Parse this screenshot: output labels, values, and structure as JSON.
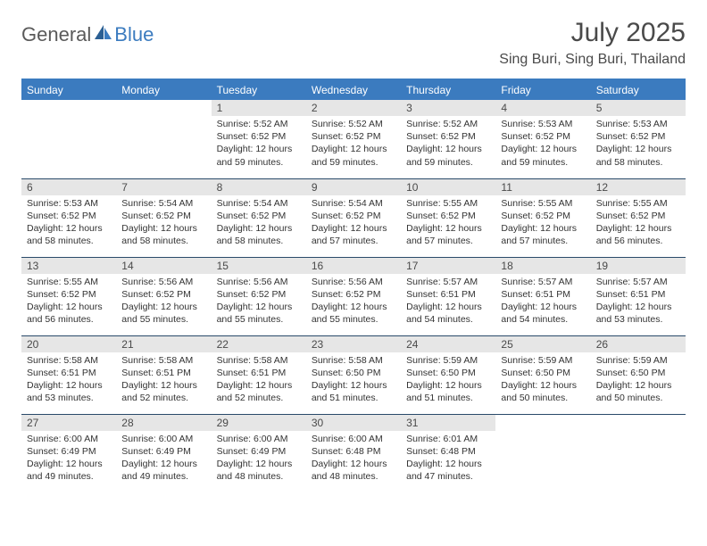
{
  "brand": {
    "part1": "General",
    "part2": "Blue"
  },
  "title": "July 2025",
  "location": "Sing Buri, Sing Buri, Thailand",
  "colors": {
    "header_bg": "#3b7bbf",
    "header_text": "#ffffff",
    "daynum_bg": "#e6e6e6",
    "row_border": "#2a4a6a",
    "body_text": "#333333",
    "title_text": "#4a4a4a"
  },
  "day_headers": [
    "Sunday",
    "Monday",
    "Tuesday",
    "Wednesday",
    "Thursday",
    "Friday",
    "Saturday"
  ],
  "weeks": [
    [
      null,
      null,
      {
        "n": "1",
        "sunrise": "5:52 AM",
        "sunset": "6:52 PM",
        "dl": "12 hours and 59 minutes."
      },
      {
        "n": "2",
        "sunrise": "5:52 AM",
        "sunset": "6:52 PM",
        "dl": "12 hours and 59 minutes."
      },
      {
        "n": "3",
        "sunrise": "5:52 AM",
        "sunset": "6:52 PM",
        "dl": "12 hours and 59 minutes."
      },
      {
        "n": "4",
        "sunrise": "5:53 AM",
        "sunset": "6:52 PM",
        "dl": "12 hours and 59 minutes."
      },
      {
        "n": "5",
        "sunrise": "5:53 AM",
        "sunset": "6:52 PM",
        "dl": "12 hours and 58 minutes."
      }
    ],
    [
      {
        "n": "6",
        "sunrise": "5:53 AM",
        "sunset": "6:52 PM",
        "dl": "12 hours and 58 minutes."
      },
      {
        "n": "7",
        "sunrise": "5:54 AM",
        "sunset": "6:52 PM",
        "dl": "12 hours and 58 minutes."
      },
      {
        "n": "8",
        "sunrise": "5:54 AM",
        "sunset": "6:52 PM",
        "dl": "12 hours and 58 minutes."
      },
      {
        "n": "9",
        "sunrise": "5:54 AM",
        "sunset": "6:52 PM",
        "dl": "12 hours and 57 minutes."
      },
      {
        "n": "10",
        "sunrise": "5:55 AM",
        "sunset": "6:52 PM",
        "dl": "12 hours and 57 minutes."
      },
      {
        "n": "11",
        "sunrise": "5:55 AM",
        "sunset": "6:52 PM",
        "dl": "12 hours and 57 minutes."
      },
      {
        "n": "12",
        "sunrise": "5:55 AM",
        "sunset": "6:52 PM",
        "dl": "12 hours and 56 minutes."
      }
    ],
    [
      {
        "n": "13",
        "sunrise": "5:55 AM",
        "sunset": "6:52 PM",
        "dl": "12 hours and 56 minutes."
      },
      {
        "n": "14",
        "sunrise": "5:56 AM",
        "sunset": "6:52 PM",
        "dl": "12 hours and 55 minutes."
      },
      {
        "n": "15",
        "sunrise": "5:56 AM",
        "sunset": "6:52 PM",
        "dl": "12 hours and 55 minutes."
      },
      {
        "n": "16",
        "sunrise": "5:56 AM",
        "sunset": "6:52 PM",
        "dl": "12 hours and 55 minutes."
      },
      {
        "n": "17",
        "sunrise": "5:57 AM",
        "sunset": "6:51 PM",
        "dl": "12 hours and 54 minutes."
      },
      {
        "n": "18",
        "sunrise": "5:57 AM",
        "sunset": "6:51 PM",
        "dl": "12 hours and 54 minutes."
      },
      {
        "n": "19",
        "sunrise": "5:57 AM",
        "sunset": "6:51 PM",
        "dl": "12 hours and 53 minutes."
      }
    ],
    [
      {
        "n": "20",
        "sunrise": "5:58 AM",
        "sunset": "6:51 PM",
        "dl": "12 hours and 53 minutes."
      },
      {
        "n": "21",
        "sunrise": "5:58 AM",
        "sunset": "6:51 PM",
        "dl": "12 hours and 52 minutes."
      },
      {
        "n": "22",
        "sunrise": "5:58 AM",
        "sunset": "6:51 PM",
        "dl": "12 hours and 52 minutes."
      },
      {
        "n": "23",
        "sunrise": "5:58 AM",
        "sunset": "6:50 PM",
        "dl": "12 hours and 51 minutes."
      },
      {
        "n": "24",
        "sunrise": "5:59 AM",
        "sunset": "6:50 PM",
        "dl": "12 hours and 51 minutes."
      },
      {
        "n": "25",
        "sunrise": "5:59 AM",
        "sunset": "6:50 PM",
        "dl": "12 hours and 50 minutes."
      },
      {
        "n": "26",
        "sunrise": "5:59 AM",
        "sunset": "6:50 PM",
        "dl": "12 hours and 50 minutes."
      }
    ],
    [
      {
        "n": "27",
        "sunrise": "6:00 AM",
        "sunset": "6:49 PM",
        "dl": "12 hours and 49 minutes."
      },
      {
        "n": "28",
        "sunrise": "6:00 AM",
        "sunset": "6:49 PM",
        "dl": "12 hours and 49 minutes."
      },
      {
        "n": "29",
        "sunrise": "6:00 AM",
        "sunset": "6:49 PM",
        "dl": "12 hours and 48 minutes."
      },
      {
        "n": "30",
        "sunrise": "6:00 AM",
        "sunset": "6:48 PM",
        "dl": "12 hours and 48 minutes."
      },
      {
        "n": "31",
        "sunrise": "6:01 AM",
        "sunset": "6:48 PM",
        "dl": "12 hours and 47 minutes."
      },
      null,
      null
    ]
  ],
  "labels": {
    "sunrise": "Sunrise: ",
    "sunset": "Sunset: ",
    "daylight": "Daylight: "
  }
}
